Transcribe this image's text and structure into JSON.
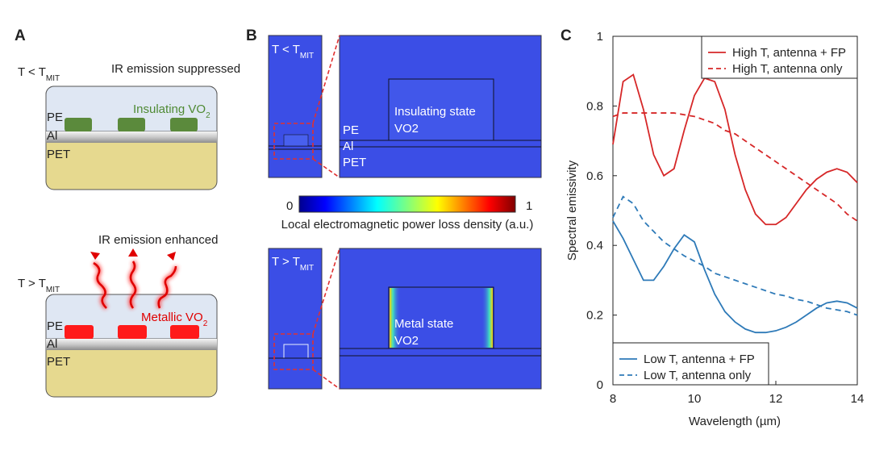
{
  "panel_a": {
    "label": "A",
    "top": {
      "condition": {
        "text": "T < T",
        "sub": "MIT"
      },
      "emission": "IR emission suppressed",
      "vo2": {
        "text": "Insulating VO",
        "sub": "2"
      },
      "layers": [
        "PE",
        "Al",
        "PET"
      ]
    },
    "bottom": {
      "condition": {
        "text": "T > T",
        "sub": "MIT"
      },
      "emission": "IR emission enhanced",
      "vo2": {
        "text": "Metallic VO",
        "sub": "2"
      },
      "layers": [
        "PE",
        "Al",
        "PET"
      ]
    }
  },
  "panel_b": {
    "label": "B",
    "top": {
      "condition": {
        "text": "T < T",
        "sub": "MIT"
      },
      "state": [
        "Insulating state",
        "VO2"
      ],
      "layers": [
        "PE",
        "Al",
        "PET"
      ]
    },
    "colorbar": {
      "min": 0,
      "max": 1,
      "label": "Local electromagnetic power loss density (a.u.)"
    },
    "bottom": {
      "condition": {
        "text": "T > T",
        "sub": "MIT"
      },
      "state": [
        "Metal state",
        "VO2"
      ]
    }
  },
  "chart_data": {
    "type": "line",
    "label": "C",
    "ylabel": "Spectral emissivity",
    "xlabel": "Wavelength (µm)",
    "x": [
      8,
      8.25,
      8.5,
      8.75,
      9,
      9.25,
      9.5,
      9.75,
      10,
      10.25,
      10.5,
      10.75,
      11,
      11.25,
      11.5,
      11.75,
      12,
      12.25,
      12.5,
      12.75,
      13,
      13.25,
      13.5,
      13.75,
      14
    ],
    "series": [
      {
        "name": "High T, antenna + FP",
        "color": "#d62728",
        "dash": false,
        "legend": "upper right",
        "values": [
          0.69,
          0.87,
          0.89,
          0.79,
          0.66,
          0.6,
          0.62,
          0.73,
          0.83,
          0.88,
          0.87,
          0.79,
          0.66,
          0.56,
          0.49,
          0.46,
          0.46,
          0.48,
          0.52,
          0.56,
          0.59,
          0.61,
          0.62,
          0.61,
          0.58
        ]
      },
      {
        "name": "High T, antenna only",
        "color": "#d62728",
        "dash": true,
        "legend": "upper right",
        "values": [
          0.77,
          0.78,
          0.78,
          0.78,
          0.78,
          0.78,
          0.78,
          0.775,
          0.77,
          0.76,
          0.75,
          0.73,
          0.72,
          0.7,
          0.68,
          0.66,
          0.64,
          0.62,
          0.6,
          0.58,
          0.56,
          0.54,
          0.52,
          0.49,
          0.47
        ]
      },
      {
        "name": "Low T, antenna + FP",
        "color": "#2e7ab8",
        "dash": false,
        "legend": "lower left",
        "values": [
          0.47,
          0.42,
          0.36,
          0.3,
          0.3,
          0.34,
          0.39,
          0.43,
          0.41,
          0.33,
          0.26,
          0.21,
          0.18,
          0.16,
          0.15,
          0.15,
          0.155,
          0.165,
          0.18,
          0.2,
          0.22,
          0.235,
          0.24,
          0.235,
          0.22
        ]
      },
      {
        "name": "Low T, antenna only",
        "color": "#2e7ab8",
        "dash": true,
        "legend": "lower left",
        "values": [
          0.48,
          0.54,
          0.52,
          0.47,
          0.44,
          0.41,
          0.39,
          0.37,
          0.355,
          0.34,
          0.32,
          0.31,
          0.3,
          0.29,
          0.28,
          0.27,
          0.26,
          0.255,
          0.245,
          0.24,
          0.23,
          0.22,
          0.215,
          0.21,
          0.2
        ]
      }
    ],
    "xlim": [
      8,
      14
    ],
    "ylim": [
      0,
      1
    ],
    "xticks": [
      8,
      10,
      12,
      14
    ],
    "yticks": [
      0,
      0.2,
      0.4,
      0.6,
      0.8,
      1
    ]
  }
}
